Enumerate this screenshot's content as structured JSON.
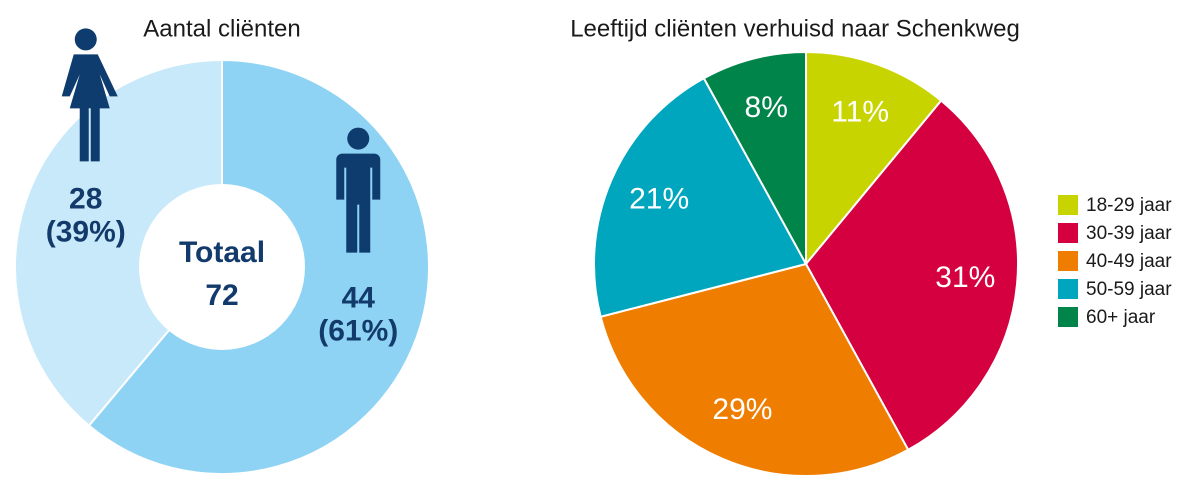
{
  "chart_data": [
    {
      "type": "donut",
      "title": "Aantal cliënten",
      "values": [
        44,
        28
      ],
      "value_labels": [
        "44",
        "28"
      ],
      "share_labels": [
        "(61%)",
        "(39%)"
      ],
      "colors": [
        "#8fd3f4",
        "#c8e9f9"
      ],
      "center_label": "Totaal",
      "total": 72
    },
    {
      "type": "pie",
      "title": "Leeftijd cliënten verhuisd naar Schenkweg",
      "categories": [
        "18-29 jaar",
        "30-39 jaar",
        "40-49 jaar",
        "50-59 jaar",
        "60+ jaar"
      ],
      "values": [
        11,
        31,
        29,
        21,
        8
      ],
      "value_labels": [
        "11%",
        "31%",
        "29%",
        "21%",
        "8%"
      ],
      "colors": [
        "#c8d400",
        "#d5003f",
        "#ef7d00",
        "#00a6bd",
        "#00844a"
      ],
      "legend": "right"
    }
  ]
}
